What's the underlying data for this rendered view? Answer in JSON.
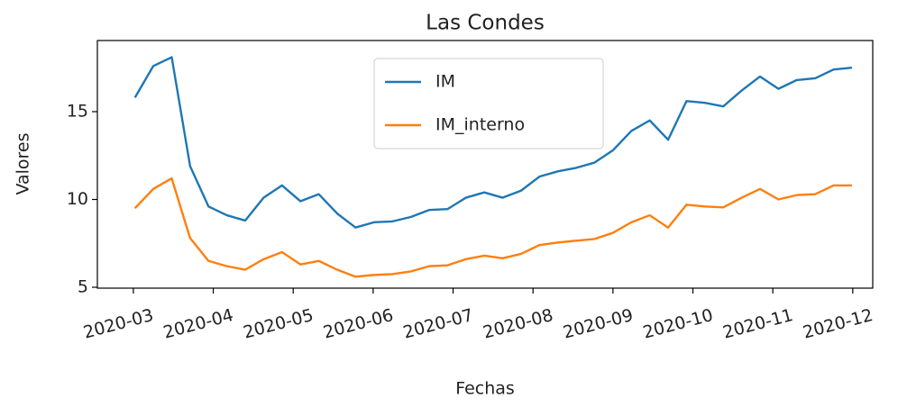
{
  "chart_data": {
    "type": "line",
    "title": "Las Condes",
    "x_label": "Fechas",
    "y_label": "Valores",
    "x": [
      3.02,
      3.25,
      3.48,
      3.71,
      3.94,
      4.17,
      4.4,
      4.63,
      4.86,
      5.09,
      5.32,
      5.55,
      5.78,
      6.01,
      6.24,
      6.47,
      6.7,
      6.93,
      7.16,
      7.39,
      7.62,
      7.85,
      8.08,
      8.31,
      8.54,
      8.77,
      9.0,
      9.23,
      9.46,
      9.69,
      9.92,
      10.15,
      10.38,
      10.61,
      10.84,
      11.07,
      11.3,
      11.53,
      11.76,
      11.99
    ],
    "series": [
      {
        "name": "IM",
        "color": "#1f77b4",
        "values": [
          15.8,
          17.6,
          18.1,
          11.9,
          9.6,
          9.1,
          8.8,
          10.1,
          10.8,
          9.9,
          10.3,
          9.2,
          8.4,
          8.7,
          8.75,
          9.0,
          9.4,
          9.45,
          10.1,
          10.4,
          10.1,
          10.5,
          11.3,
          11.6,
          11.8,
          12.1,
          12.8,
          13.9,
          14.5,
          13.4,
          15.6,
          15.5,
          15.3,
          16.2,
          17.0,
          16.3,
          16.8,
          16.9,
          17.4,
          17.5
        ]
      },
      {
        "name": "IM_interno",
        "color": "#ff7f0e",
        "values": [
          9.5,
          10.6,
          11.2,
          7.8,
          6.5,
          6.2,
          6.0,
          6.6,
          7.0,
          6.3,
          6.5,
          6.0,
          5.6,
          5.7,
          5.75,
          5.9,
          6.2,
          6.25,
          6.6,
          6.8,
          6.65,
          6.9,
          7.4,
          7.55,
          7.65,
          7.75,
          8.1,
          8.7,
          9.1,
          8.4,
          9.7,
          9.6,
          9.55,
          10.1,
          10.6,
          10.0,
          10.25,
          10.3,
          10.8,
          10.8
        ]
      }
    ],
    "xlim": [
      2.55,
      12.25
    ],
    "xticks": [
      {
        "value": 3,
        "label": "2020-03"
      },
      {
        "value": 4,
        "label": "2020-04"
      },
      {
        "value": 5,
        "label": "2020-05"
      },
      {
        "value": 6,
        "label": "2020-06"
      },
      {
        "value": 7,
        "label": "2020-07"
      },
      {
        "value": 8,
        "label": "2020-08"
      },
      {
        "value": 9,
        "label": "2020-09"
      },
      {
        "value": 10,
        "label": "2020-10"
      },
      {
        "value": 11,
        "label": "2020-11"
      },
      {
        "value": 12,
        "label": "2020-12"
      }
    ],
    "ylim": [
      4.95,
      19.05
    ],
    "yticks": [
      5,
      10,
      15
    ],
    "legend": "upper center"
  }
}
